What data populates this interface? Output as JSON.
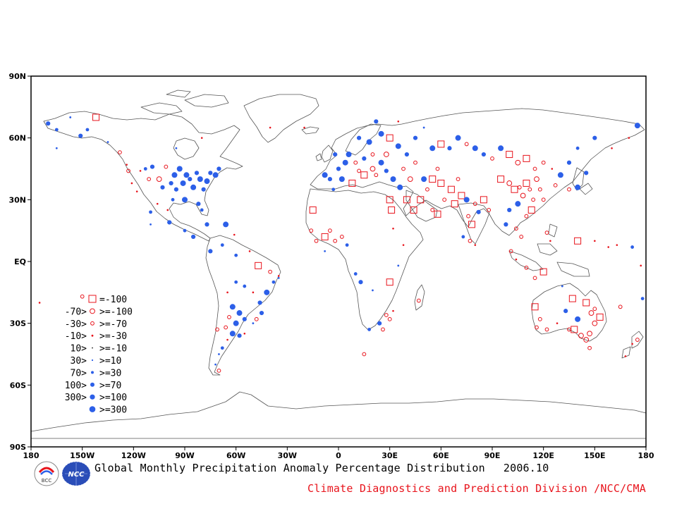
{
  "map": {
    "lat_labels": [
      "90N",
      "60N",
      "30N",
      "EQ",
      "30S",
      "60S",
      "90S"
    ],
    "lat_values": [
      90,
      60,
      30,
      0,
      -30,
      -60,
      -90
    ],
    "lon_labels": [
      "180",
      "150W",
      "120W",
      "90W",
      "60W",
      "30W",
      "0",
      "30E",
      "60E",
      "90E",
      "120E",
      "150E",
      "180"
    ],
    "lon_values": [
      -180,
      -150,
      -120,
      -90,
      -60,
      -30,
      0,
      30,
      60,
      90,
      120,
      150,
      180
    ]
  },
  "legend": {
    "items": [
      {
        "lower": "",
        "upper": "=-100",
        "symbol": "square",
        "color": "#e8141c",
        "size": 5
      },
      {
        "lower": "-70>",
        "upper": ">=-100",
        "symbol": "ring",
        "color": "#e8141c",
        "size": 3.4
      },
      {
        "lower": "-30>",
        "upper": ">=-70",
        "symbol": "ring",
        "color": "#e8141c",
        "size": 2.4
      },
      {
        "lower": "-10>",
        "upper": ">=-30",
        "symbol": "dot",
        "color": "#e8141c",
        "size": 1.4
      },
      {
        "lower": "10>",
        "upper": ">=-10",
        "symbol": "dot",
        "color": "#000000",
        "size": 0.8
      },
      {
        "lower": "30>",
        "upper": ">=10",
        "symbol": "dot",
        "color": "#2c5fe8",
        "size": 1.1
      },
      {
        "lower": "70>",
        "upper": ">=30",
        "symbol": "dot",
        "color": "#2c5fe8",
        "size": 2.0
      },
      {
        "lower": "100>",
        "upper": ">=70",
        "symbol": "dot",
        "color": "#2c5fe8",
        "size": 3.0
      },
      {
        "lower": "300>",
        "upper": ">=100",
        "symbol": "dot",
        "color": "#2c5fe8",
        "size": 3.6
      },
      {
        "lower": "",
        "upper": ">=300",
        "symbol": "dot",
        "color": "#2c5fe8",
        "size": 4.3
      }
    ]
  },
  "title": {
    "main": "Global Monthly Precipitation Anomaly Percentage Distribution",
    "date": "2006.10"
  },
  "credit": "Climate Diagnostics and Prediction Division /NCC/CMA",
  "logos": {
    "left": "BCC",
    "right": "NCC"
  },
  "colors": {
    "negative": "#e8141c",
    "positive": "#2c5fe8",
    "coast": "#555555"
  },
  "stations": [
    {
      "lon": -165,
      "lat": 64,
      "cat": "pos70"
    },
    {
      "lon": -157,
      "lat": 70,
      "cat": "pos30"
    },
    {
      "lon": -151,
      "lat": 61,
      "cat": "pos100"
    },
    {
      "lon": -147,
      "lat": 64,
      "cat": "pos70"
    },
    {
      "lon": -142,
      "lat": 70,
      "cat": "sqr"
    },
    {
      "lon": -135,
      "lat": 58,
      "cat": "pos30"
    },
    {
      "lon": -128,
      "lat": 53,
      "cat": "neg70"
    },
    {
      "lon": -124,
      "lat": 47,
      "cat": "neg30"
    },
    {
      "lon": -123,
      "lat": 44,
      "cat": "neg70"
    },
    {
      "lon": -121,
      "lat": 38,
      "cat": "neg30"
    },
    {
      "lon": -118,
      "lat": 34,
      "cat": "neg30"
    },
    {
      "lon": -116,
      "lat": 44,
      "cat": "neg30"
    },
    {
      "lon": -113,
      "lat": 45,
      "cat": "pos70"
    },
    {
      "lon": -111,
      "lat": 40,
      "cat": "neg70"
    },
    {
      "lon": -109,
      "lat": 46,
      "cat": "pos100"
    },
    {
      "lon": -105,
      "lat": 40,
      "cat": "neg100"
    },
    {
      "lon": -103,
      "lat": 36,
      "cat": "pos100"
    },
    {
      "lon": -101,
      "lat": 46,
      "cat": "neg70"
    },
    {
      "lon": -98,
      "lat": 38,
      "cat": "pos100"
    },
    {
      "lon": -96,
      "lat": 42,
      "cat": "pos300"
    },
    {
      "lon": -95,
      "lat": 35,
      "cat": "pos100"
    },
    {
      "lon": -93,
      "lat": 45,
      "cat": "pos300"
    },
    {
      "lon": -91,
      "lat": 38,
      "cat": "pos300"
    },
    {
      "lon": -89,
      "lat": 42,
      "cat": "pos300"
    },
    {
      "lon": -87,
      "lat": 40,
      "cat": "pos100"
    },
    {
      "lon": -85,
      "lat": 36,
      "cat": "pos300"
    },
    {
      "lon": -83,
      "lat": 43,
      "cat": "pos100"
    },
    {
      "lon": -81,
      "lat": 40,
      "cat": "pos300"
    },
    {
      "lon": -79,
      "lat": 35,
      "cat": "pos100"
    },
    {
      "lon": -77,
      "lat": 39,
      "cat": "pos300"
    },
    {
      "lon": -75,
      "lat": 43,
      "cat": "pos100"
    },
    {
      "lon": -72,
      "lat": 42,
      "cat": "pos300"
    },
    {
      "lon": -70,
      "lat": 45,
      "cat": "pos100"
    },
    {
      "lon": -97,
      "lat": 30,
      "cat": "pos70"
    },
    {
      "lon": -90,
      "lat": 30,
      "cat": "pos300"
    },
    {
      "lon": -82,
      "lat": 28,
      "cat": "pos100"
    },
    {
      "lon": -80,
      "lat": 25,
      "cat": "pos70"
    },
    {
      "lon": -100,
      "lat": 25,
      "cat": "neg30"
    },
    {
      "lon": -106,
      "lat": 28,
      "cat": "neg30"
    },
    {
      "lon": -110,
      "lat": 24,
      "cat": "pos70"
    },
    {
      "lon": -99,
      "lat": 19,
      "cat": "pos100"
    },
    {
      "lon": -90,
      "lat": 15,
      "cat": "pos70"
    },
    {
      "lon": -85,
      "lat": 12,
      "cat": "pos100"
    },
    {
      "lon": -77,
      "lat": 18,
      "cat": "pos100"
    },
    {
      "lon": -66,
      "lat": 18,
      "cat": "pos300"
    },
    {
      "lon": -61,
      "lat": 13,
      "cat": "neg30"
    },
    {
      "lon": -75,
      "lat": 5,
      "cat": "pos100"
    },
    {
      "lon": -68,
      "lat": 8,
      "cat": "pos70"
    },
    {
      "lon": -60,
      "lat": 3,
      "cat": "pos70"
    },
    {
      "lon": -52,
      "lat": 5,
      "cat": "neg30"
    },
    {
      "lon": -47,
      "lat": -2,
      "cat": "sqr"
    },
    {
      "lon": -40,
      "lat": -5,
      "cat": "neg70"
    },
    {
      "lon": -38,
      "lat": -10,
      "cat": "pos70"
    },
    {
      "lon": -35,
      "lat": -7,
      "cat": "neg30"
    },
    {
      "lon": -42,
      "lat": -15,
      "cat": "pos300"
    },
    {
      "lon": -46,
      "lat": -20,
      "cat": "pos100"
    },
    {
      "lon": -50,
      "lat": -15,
      "cat": "neg30"
    },
    {
      "lon": -55,
      "lat": -12,
      "cat": "pos70"
    },
    {
      "lon": -60,
      "lat": -10,
      "cat": "pos70"
    },
    {
      "lon": -65,
      "lat": -15,
      "cat": "neg30"
    },
    {
      "lon": -62,
      "lat": -22,
      "cat": "pos300"
    },
    {
      "lon": -58,
      "lat": -25,
      "cat": "pos300"
    },
    {
      "lon": -55,
      "lat": -28,
      "cat": "pos100"
    },
    {
      "lon": -60,
      "lat": -30,
      "cat": "pos300"
    },
    {
      "lon": -64,
      "lat": -27,
      "cat": "neg70"
    },
    {
      "lon": -66,
      "lat": -32,
      "cat": "neg70"
    },
    {
      "lon": -62,
      "lat": -35,
      "cat": "pos300"
    },
    {
      "lon": -58,
      "lat": -36,
      "cat": "pos100"
    },
    {
      "lon": -65,
      "lat": -38,
      "cat": "neg30"
    },
    {
      "lon": -68,
      "lat": -42,
      "cat": "pos70"
    },
    {
      "lon": -70,
      "lat": -45,
      "cat": "pos30"
    },
    {
      "lon": -71,
      "lat": -33,
      "cat": "neg70"
    },
    {
      "lon": -70,
      "lat": -53,
      "cat": "neg70"
    },
    {
      "lon": -72,
      "lat": -50,
      "cat": "pos30"
    },
    {
      "lon": -20,
      "lat": 65,
      "cat": "neg30"
    },
    {
      "lon": -40,
      "lat": 65,
      "cat": "neg30"
    },
    {
      "lon": -15,
      "lat": 25,
      "cat": "sqr"
    },
    {
      "lon": -16,
      "lat": 15,
      "cat": "neg70"
    },
    {
      "lon": -13,
      "lat": 10,
      "cat": "neg70"
    },
    {
      "lon": -8,
      "lat": 12,
      "cat": "sqr"
    },
    {
      "lon": -5,
      "lat": 15,
      "cat": "neg70"
    },
    {
      "lon": -2,
      "lat": 10,
      "cat": "neg70"
    },
    {
      "lon": 2,
      "lat": 12,
      "cat": "neg70"
    },
    {
      "lon": 5,
      "lat": 8,
      "cat": "pos70"
    },
    {
      "lon": -8,
      "lat": 5,
      "cat": "pos30"
    },
    {
      "lon": -3,
      "lat": 35,
      "cat": "pos70"
    },
    {
      "lon": 2,
      "lat": 40,
      "cat": "pos300"
    },
    {
      "lon": -5,
      "lat": 40,
      "cat": "pos100"
    },
    {
      "lon": -8,
      "lat": 42,
      "cat": "pos300"
    },
    {
      "lon": 0,
      "lat": 45,
      "cat": "pos100"
    },
    {
      "lon": 4,
      "lat": 48,
      "cat": "pos300"
    },
    {
      "lon": -2,
      "lat": 52,
      "cat": "pos100"
    },
    {
      "lon": 6,
      "lat": 52,
      "cat": "pos300"
    },
    {
      "lon": 10,
      "lat": 48,
      "cat": "neg70"
    },
    {
      "lon": 12,
      "lat": 44,
      "cat": "neg70"
    },
    {
      "lon": 15,
      "lat": 50,
      "cat": "pos100"
    },
    {
      "lon": 20,
      "lat": 52,
      "cat": "neg70"
    },
    {
      "lon": 25,
      "lat": 48,
      "cat": "pos300"
    },
    {
      "lon": 22,
      "lat": 42,
      "cat": "neg70"
    },
    {
      "lon": 28,
      "lat": 44,
      "cat": "pos100"
    },
    {
      "lon": 18,
      "lat": 58,
      "cat": "pos300"
    },
    {
      "lon": 12,
      "lat": 60,
      "cat": "pos100"
    },
    {
      "lon": 25,
      "lat": 62,
      "cat": "pos300"
    },
    {
      "lon": 30,
      "lat": 60,
      "cat": "sqr"
    },
    {
      "lon": 35,
      "lat": 56,
      "cat": "pos300"
    },
    {
      "lon": 40,
      "lat": 52,
      "cat": "pos100"
    },
    {
      "lon": 45,
      "lat": 48,
      "cat": "neg70"
    },
    {
      "lon": 38,
      "lat": 45,
      "cat": "neg70"
    },
    {
      "lon": 32,
      "lat": 40,
      "cat": "pos300"
    },
    {
      "lon": 36,
      "lat": 36,
      "cat": "pos300"
    },
    {
      "lon": 30,
      "lat": 30,
      "cat": "sqr"
    },
    {
      "lon": 31,
      "lat": 25,
      "cat": "sqr"
    },
    {
      "lon": 32,
      "lat": 16,
      "cat": "neg30"
    },
    {
      "lon": 38,
      "lat": 8,
      "cat": "neg30"
    },
    {
      "lon": 35,
      "lat": -2,
      "cat": "pos30"
    },
    {
      "lon": 30,
      "lat": -10,
      "cat": "sqr"
    },
    {
      "lon": 28,
      "lat": -26,
      "cat": "neg70"
    },
    {
      "lon": 24,
      "lat": -30,
      "cat": "pos100"
    },
    {
      "lon": 26,
      "lat": -33,
      "cat": "neg70"
    },
    {
      "lon": 18,
      "lat": -33,
      "cat": "pos70"
    },
    {
      "lon": 30,
      "lat": -28,
      "cat": "neg70"
    },
    {
      "lon": 32,
      "lat": -24,
      "cat": "neg30"
    },
    {
      "lon": 10,
      "lat": -6,
      "cat": "pos70"
    },
    {
      "lon": 13,
      "lat": -10,
      "cat": "pos100"
    },
    {
      "lon": 20,
      "lat": -14,
      "cat": "pos30"
    },
    {
      "lon": 47,
      "lat": -19,
      "cat": "neg70"
    },
    {
      "lon": 15,
      "lat": -45,
      "cat": "neg70"
    },
    {
      "lon": 50,
      "lat": 40,
      "cat": "pos300"
    },
    {
      "lon": 52,
      "lat": 35,
      "cat": "neg70"
    },
    {
      "lon": 55,
      "lat": 40,
      "cat": "sqr"
    },
    {
      "lon": 58,
      "lat": 45,
      "cat": "neg70"
    },
    {
      "lon": 60,
      "lat": 38,
      "cat": "sqr"
    },
    {
      "lon": 62,
      "lat": 30,
      "cat": "neg70"
    },
    {
      "lon": 66,
      "lat": 35,
      "cat": "sqr"
    },
    {
      "lon": 68,
      "lat": 28,
      "cat": "sqr"
    },
    {
      "lon": 70,
      "lat": 40,
      "cat": "neg70"
    },
    {
      "lon": 72,
      "lat": 32,
      "cat": "sqr"
    },
    {
      "lon": 75,
      "lat": 30,
      "cat": "pos300"
    },
    {
      "lon": 76,
      "lat": 22,
      "cat": "neg70"
    },
    {
      "lon": 78,
      "lat": 18,
      "cat": "sqr"
    },
    {
      "lon": 80,
      "lat": 28,
      "cat": "neg70"
    },
    {
      "lon": 82,
      "lat": 24,
      "cat": "pos100"
    },
    {
      "lon": 85,
      "lat": 30,
      "cat": "sqr"
    },
    {
      "lon": 88,
      "lat": 25,
      "cat": "neg70"
    },
    {
      "lon": 73,
      "lat": 12,
      "cat": "pos70"
    },
    {
      "lon": 77,
      "lat": 10,
      "cat": "neg70"
    },
    {
      "lon": 80,
      "lat": 8,
      "cat": "neg30"
    },
    {
      "lon": 55,
      "lat": 55,
      "cat": "pos300"
    },
    {
      "lon": 60,
      "lat": 57,
      "cat": "sqr"
    },
    {
      "lon": 65,
      "lat": 55,
      "cat": "pos100"
    },
    {
      "lon": 70,
      "lat": 60,
      "cat": "pos300"
    },
    {
      "lon": 75,
      "lat": 57,
      "cat": "neg70"
    },
    {
      "lon": 80,
      "lat": 55,
      "cat": "pos300"
    },
    {
      "lon": 85,
      "lat": 52,
      "cat": "pos100"
    },
    {
      "lon": 90,
      "lat": 50,
      "cat": "neg70"
    },
    {
      "lon": 95,
      "lat": 55,
      "cat": "pos300"
    },
    {
      "lon": 100,
      "lat": 52,
      "cat": "sqr"
    },
    {
      "lon": 105,
      "lat": 48,
      "cat": "neg100"
    },
    {
      "lon": 110,
      "lat": 50,
      "cat": "sqr"
    },
    {
      "lon": 115,
      "lat": 45,
      "cat": "neg70"
    },
    {
      "lon": 120,
      "lat": 48,
      "cat": "neg70"
    },
    {
      "lon": 125,
      "lat": 45,
      "cat": "neg30"
    },
    {
      "lon": 130,
      "lat": 42,
      "cat": "pos300"
    },
    {
      "lon": 135,
      "lat": 48,
      "cat": "pos100"
    },
    {
      "lon": 140,
      "lat": 55,
      "cat": "pos70"
    },
    {
      "lon": 150,
      "lat": 60,
      "cat": "pos100"
    },
    {
      "lon": 160,
      "lat": 55,
      "cat": "neg30"
    },
    {
      "lon": 175,
      "lat": 66,
      "cat": "pos300"
    },
    {
      "lon": 170,
      "lat": 60,
      "cat": "neg30"
    },
    {
      "lon": 95,
      "lat": 40,
      "cat": "sqr"
    },
    {
      "lon": 100,
      "lat": 38,
      "cat": "neg100"
    },
    {
      "lon": 103,
      "lat": 35,
      "cat": "sqr"
    },
    {
      "lon": 106,
      "lat": 36,
      "cat": "neg70"
    },
    {
      "lon": 108,
      "lat": 32,
      "cat": "neg100"
    },
    {
      "lon": 110,
      "lat": 38,
      "cat": "sqr"
    },
    {
      "lon": 112,
      "lat": 35,
      "cat": "neg70"
    },
    {
      "lon": 114,
      "lat": 30,
      "cat": "neg70"
    },
    {
      "lon": 116,
      "lat": 40,
      "cat": "neg100"
    },
    {
      "lon": 118,
      "lat": 35,
      "cat": "neg70"
    },
    {
      "lon": 120,
      "lat": 30,
      "cat": "neg70"
    },
    {
      "lon": 113,
      "lat": 25,
      "cat": "sqr"
    },
    {
      "lon": 110,
      "lat": 22,
      "cat": "neg70"
    },
    {
      "lon": 105,
      "lat": 28,
      "cat": "pos300"
    },
    {
      "lon": 100,
      "lat": 25,
      "cat": "pos100"
    },
    {
      "lon": 98,
      "lat": 18,
      "cat": "pos100"
    },
    {
      "lon": 104,
      "lat": 16,
      "cat": "neg70"
    },
    {
      "lon": 107,
      "lat": 12,
      "cat": "neg70"
    },
    {
      "lon": 101,
      "lat": 5,
      "cat": "neg70"
    },
    {
      "lon": 104,
      "lat": 1,
      "cat": "neg30"
    },
    {
      "lon": 110,
      "lat": -3,
      "cat": "neg70"
    },
    {
      "lon": 115,
      "lat": -8,
      "cat": "neg70"
    },
    {
      "lon": 120,
      "lat": -5,
      "cat": "sqr"
    },
    {
      "lon": 122,
      "lat": 14,
      "cat": "neg70"
    },
    {
      "lon": 124,
      "lat": 10,
      "cat": "neg30"
    },
    {
      "lon": 127,
      "lat": 37,
      "cat": "neg70"
    },
    {
      "lon": 140,
      "lat": 36,
      "cat": "pos300"
    },
    {
      "lon": 135,
      "lat": 35,
      "cat": "neg70"
    },
    {
      "lon": 145,
      "lat": 43,
      "cat": "pos100"
    },
    {
      "lon": 140,
      "lat": 10,
      "cat": "sqr"
    },
    {
      "lon": 150,
      "lat": 10,
      "cat": "neg30"
    },
    {
      "lon": 158,
      "lat": 7,
      "cat": "neg30"
    },
    {
      "lon": 163,
      "lat": 8,
      "cat": "neg30"
    },
    {
      "lon": 172,
      "lat": 7,
      "cat": "pos70"
    },
    {
      "lon": 177,
      "lat": -2,
      "cat": "neg30"
    },
    {
      "lon": 115,
      "lat": -22,
      "cat": "sqr"
    },
    {
      "lon": 118,
      "lat": -28,
      "cat": "neg70"
    },
    {
      "lon": 116,
      "lat": -32,
      "cat": "neg70"
    },
    {
      "lon": 122,
      "lat": -33,
      "cat": "neg70"
    },
    {
      "lon": 128,
      "lat": -30,
      "cat": "neg30"
    },
    {
      "lon": 133,
      "lat": -24,
      "cat": "pos100"
    },
    {
      "lon": 131,
      "lat": -12,
      "cat": "pos30"
    },
    {
      "lon": 137,
      "lat": -18,
      "cat": "sqr"
    },
    {
      "lon": 140,
      "lat": -28,
      "cat": "pos300"
    },
    {
      "lon": 145,
      "lat": -20,
      "cat": "sqr"
    },
    {
      "lon": 148,
      "lat": -25,
      "cat": "neg100"
    },
    {
      "lon": 150,
      "lat": -30,
      "cat": "neg100"
    },
    {
      "lon": 147,
      "lat": -35,
      "cat": "neg100"
    },
    {
      "lon": 145,
      "lat": -38,
      "cat": "neg100"
    },
    {
      "lon": 142,
      "lat": -36,
      "cat": "neg100"
    },
    {
      "lon": 138,
      "lat": -33,
      "cat": "sqr"
    },
    {
      "lon": 135,
      "lat": -33,
      "cat": "neg70"
    },
    {
      "lon": 150,
      "lat": -23,
      "cat": "neg70"
    },
    {
      "lon": 153,
      "lat": -27,
      "cat": "sqr"
    },
    {
      "lon": 147,
      "lat": -42,
      "cat": "neg70"
    },
    {
      "lon": 165,
      "lat": -22,
      "cat": "neg70"
    },
    {
      "lon": 172,
      "lat": -40,
      "cat": "neg30"
    },
    {
      "lon": 175,
      "lat": -38,
      "cat": "neg70"
    },
    {
      "lon": 168,
      "lat": -46,
      "cat": "neg30"
    },
    {
      "lon": 178,
      "lat": -18,
      "cat": "pos70"
    },
    {
      "lon": -150,
      "lat": -17,
      "cat": "neg70"
    },
    {
      "lon": -175,
      "lat": -20,
      "cat": "neg30"
    },
    {
      "lon": -110,
      "lat": 18,
      "cat": "pos30"
    },
    {
      "lon": -95,
      "lat": 55,
      "cat": "pos30"
    },
    {
      "lon": -80,
      "lat": 60,
      "cat": "neg30"
    },
    {
      "lon": -165,
      "lat": 55,
      "cat": "pos30"
    },
    {
      "lon": -170,
      "lat": 67,
      "cat": "pos100"
    },
    {
      "lon": -45,
      "lat": -25,
      "cat": "pos100"
    },
    {
      "lon": -50,
      "lat": -30,
      "cat": "pos30"
    },
    {
      "lon": -35,
      "lat": -8,
      "cat": "pos30"
    },
    {
      "lon": -48,
      "lat": -28,
      "cat": "neg70"
    },
    {
      "lon": -55,
      "lat": -35,
      "cat": "neg30"
    },
    {
      "lon": 45,
      "lat": 60,
      "cat": "pos100"
    },
    {
      "lon": 50,
      "lat": 65,
      "cat": "pos30"
    },
    {
      "lon": 35,
      "lat": 68,
      "cat": "neg30"
    },
    {
      "lon": 22,
      "lat": 68,
      "cat": "pos100"
    },
    {
      "lon": 28,
      "lat": 52,
      "cat": "neg100"
    },
    {
      "lon": 20,
      "lat": 45,
      "cat": "neg100"
    },
    {
      "lon": 15,
      "lat": 42,
      "cat": "sqr"
    },
    {
      "lon": 8,
      "lat": 38,
      "cat": "sqr"
    },
    {
      "lon": 42,
      "lat": 40,
      "cat": "neg100"
    },
    {
      "lon": 48,
      "lat": 30,
      "cat": "sqr"
    },
    {
      "lon": 44,
      "lat": 25,
      "cat": "sqr"
    },
    {
      "lon": 40,
      "lat": 30,
      "cat": "sqr"
    },
    {
      "lon": 58,
      "lat": 23,
      "cat": "sqr"
    },
    {
      "lon": 55,
      "lat": 25,
      "cat": "neg70"
    }
  ]
}
